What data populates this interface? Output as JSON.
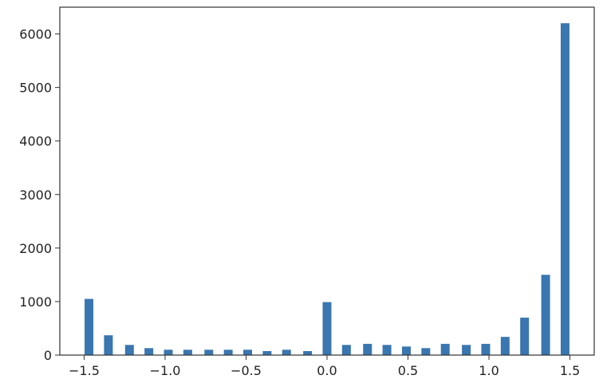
{
  "chart_data": {
    "type": "bar",
    "title": "",
    "xlabel": "",
    "ylabel": "",
    "xlim": [
      -1.65,
      1.65
    ],
    "ylim": [
      0,
      6500
    ],
    "bar_color": "#3a76af",
    "grid": false,
    "x_ticks": [
      {
        "value": -1.5,
        "label": "−1.5"
      },
      {
        "value": -1.0,
        "label": "−1.0"
      },
      {
        "value": -0.5,
        "label": "−0.5"
      },
      {
        "value": 0.0,
        "label": "0.0"
      },
      {
        "value": 0.5,
        "label": "0.5"
      },
      {
        "value": 1.0,
        "label": "1.0"
      },
      {
        "value": 1.5,
        "label": "1.5"
      }
    ],
    "y_ticks": [
      {
        "value": 0,
        "label": "0"
      },
      {
        "value": 1000,
        "label": "1000"
      },
      {
        "value": 2000,
        "label": "2000"
      },
      {
        "value": 3000,
        "label": "3000"
      },
      {
        "value": 4000,
        "label": "4000"
      },
      {
        "value": 5000,
        "label": "5000"
      },
      {
        "value": 6000,
        "label": "6000"
      }
    ],
    "x": [
      -1.47,
      -1.35,
      -1.22,
      -1.1,
      -0.98,
      -0.86,
      -0.73,
      -0.61,
      -0.49,
      -0.37,
      -0.25,
      -0.12,
      0.0,
      0.12,
      0.25,
      0.37,
      0.49,
      0.61,
      0.73,
      0.86,
      0.98,
      1.1,
      1.22,
      1.35,
      1.47
    ],
    "values": [
      1050,
      370,
      190,
      130,
      100,
      100,
      100,
      100,
      100,
      75,
      100,
      75,
      990,
      190,
      210,
      190,
      160,
      130,
      210,
      190,
      210,
      340,
      700,
      1500,
      6200
    ]
  }
}
